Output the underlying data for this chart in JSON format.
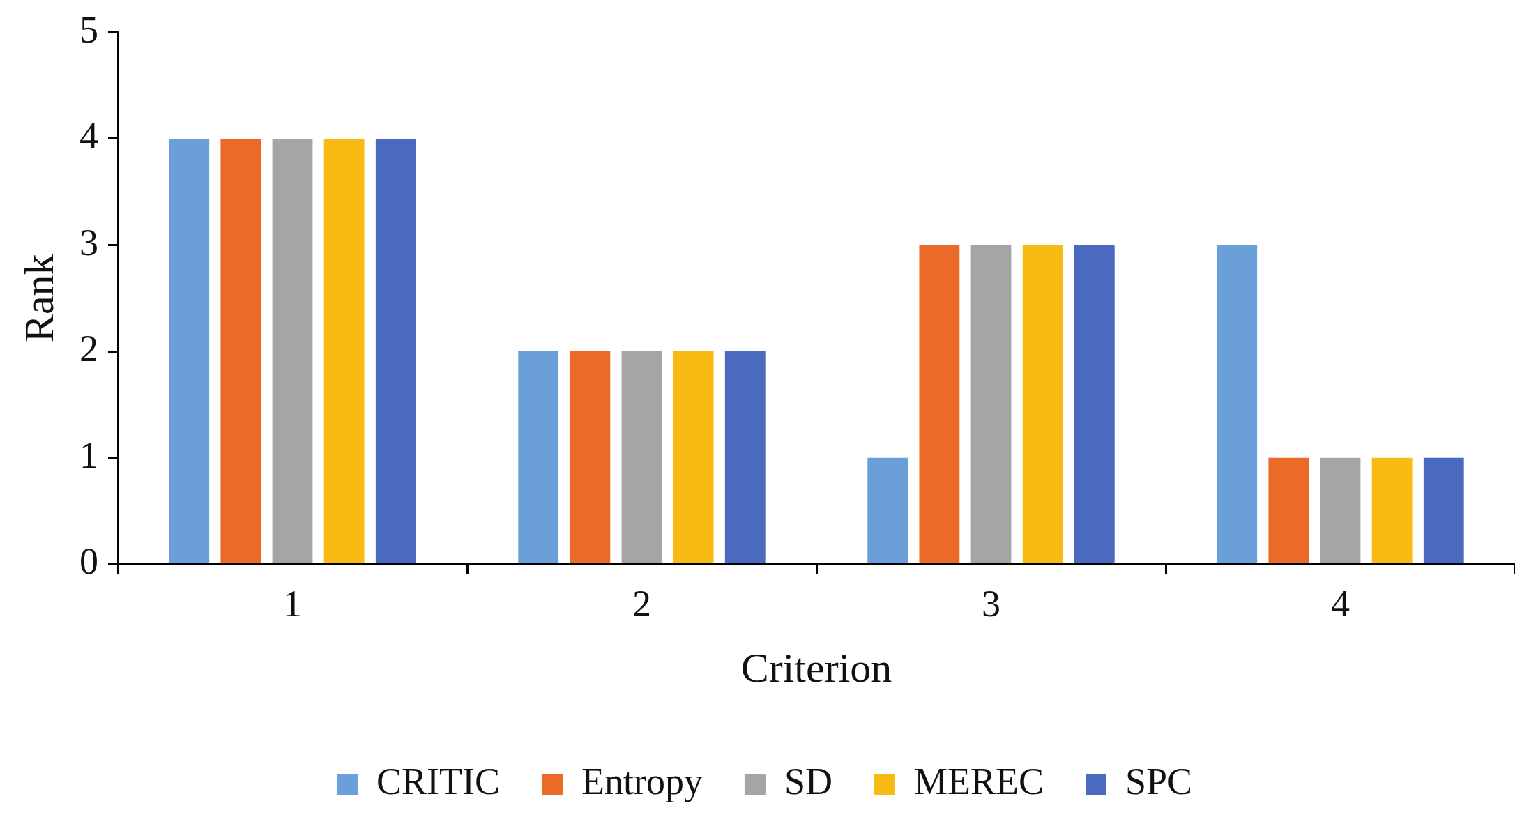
{
  "chart_data": {
    "type": "bar",
    "xlabel": "Criterion",
    "ylabel": "Rank",
    "categories": [
      "1",
      "2",
      "3",
      "4"
    ],
    "series": [
      {
        "name": "CRITIC",
        "color": "#6a9fda",
        "values": [
          4,
          2,
          1,
          3
        ]
      },
      {
        "name": "Entropy",
        "color": "#eb6a28",
        "values": [
          4,
          2,
          3,
          1
        ]
      },
      {
        "name": "SD",
        "color": "#a5a5a5",
        "values": [
          4,
          2,
          3,
          1
        ]
      },
      {
        "name": "MEREC",
        "color": "#f8bb14",
        "values": [
          4,
          2,
          3,
          1
        ]
      },
      {
        "name": "SPC",
        "color": "#4a6abf",
        "values": [
          4,
          2,
          3,
          1
        ]
      }
    ],
    "ylim": [
      0,
      5
    ],
    "yticks": [
      0,
      1,
      2,
      3,
      4,
      5
    ],
    "legend": "bottom"
  }
}
